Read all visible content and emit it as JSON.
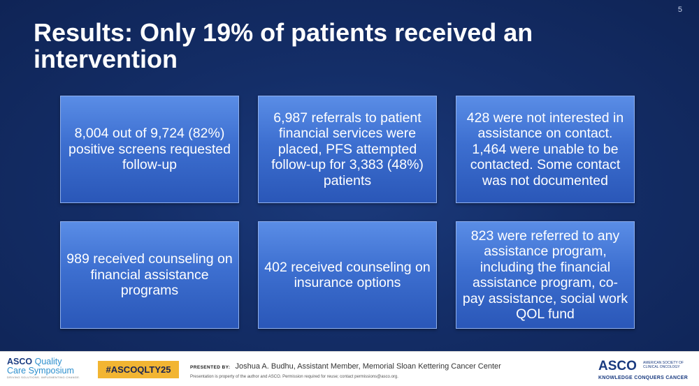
{
  "slide": {
    "page_number": "5",
    "title": "Results: Only 19% of patients received an intervention",
    "boxes": [
      "8,004 out of 9,724 (82%) positive screens requested follow-up",
      "6,987 referrals to patient financial services were placed, PFS attempted follow-up for 3,383 (48%) patients",
      "428 were not interested in assistance on contact. 1,464 were unable to be contacted. Some contact was not documented",
      "989 received counseling on financial assistance programs",
      "402 received counseling on insurance options",
      "823 were referred to any assistance program, including the financial assistance program, co-pay assistance, social work QOL fund"
    ]
  },
  "footer": {
    "left_logo": {
      "asco": "ASCO",
      "quality": "Quality",
      "line2": "Care Symposium",
      "tagline": "DRIVING SOLUTIONS. IMPLEMENTING CHANGE."
    },
    "hashtag": "#ASCOQLTY25",
    "presented_by_label": "PRESENTED BY:",
    "presenter": "Joshua A. Budhu, Assistant Member, Memorial Sloan Kettering Cancer Center",
    "disclaimer": "Presentation is property of the author and ASCO. Permission required for reuse; contact permissions@asco.org.",
    "right_logo": {
      "mark": "ASCO",
      "society": "AMERICAN SOCIETY OF CLINICAL ONCOLOGY",
      "tagline": "KNOWLEDGE CONQUERS CANCER"
    }
  },
  "colors": {
    "background": "#142e68",
    "box": "#3d6fd0",
    "hashtag_bg": "#f2b532",
    "brand_navy": "#1a3b80"
  }
}
